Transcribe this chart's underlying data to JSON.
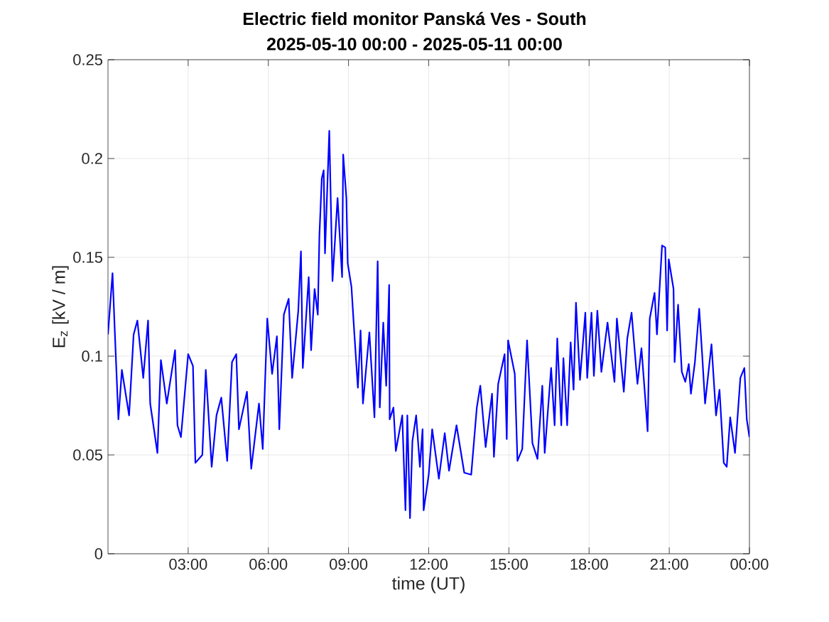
{
  "chart_data": {
    "type": "line",
    "title": "Electric field monitor Panská Ves - South",
    "subtitle": "2025-05-10 00:00 - 2025-05-11 00:00",
    "xlabel": "time (UT)",
    "ylabel": "E$_{z}$ [kV / m]",
    "xlim": [
      0,
      24
    ],
    "xticks": [
      {
        "value": 3,
        "label": "03:00"
      },
      {
        "value": 6,
        "label": "06:00"
      },
      {
        "value": 9,
        "label": "09:00"
      },
      {
        "value": 12,
        "label": "12:00"
      },
      {
        "value": 15,
        "label": "15:00"
      },
      {
        "value": 18,
        "label": "18:00"
      },
      {
        "value": 21,
        "label": "21:00"
      },
      {
        "value": 24,
        "label": "00:00"
      }
    ],
    "ylim": [
      0,
      0.25
    ],
    "yticks": [
      0,
      0.05,
      0.1,
      0.15,
      0.2,
      0.25
    ],
    "grid": true,
    "line_style": "solid",
    "marker": "none",
    "series": [
      {
        "color": "#0000ff",
        "x": [
          0,
          0.17,
          0.26,
          0.39,
          0.52,
          0.79,
          0.96,
          1.1,
          1.32,
          1.5,
          1.58,
          1.85,
          1.98,
          2.2,
          2.51,
          2.6,
          2.73,
          3.0,
          3.18,
          3.27,
          3.53,
          3.66,
          3.88,
          4.06,
          4.24,
          4.46,
          4.64,
          4.8,
          4.9,
          5.2,
          5.36,
          5.65,
          5.79,
          5.96,
          6.14,
          6.32,
          6.41,
          6.58,
          6.76,
          6.89,
          7.12,
          7.22,
          7.29,
          7.51,
          7.6,
          7.73,
          7.85,
          7.91,
          8.0,
          8.07,
          8.12,
          8.28,
          8.4,
          8.59,
          8.76,
          8.8,
          8.92,
          8.97,
          9.11,
          9.21,
          9.35,
          9.45,
          9.54,
          9.78,
          9.97,
          10.09,
          10.17,
          10.3,
          10.41,
          10.52,
          10.54,
          10.68,
          10.77,
          11.01,
          11.13,
          11.2,
          11.3,
          11.39,
          11.53,
          11.67,
          11.77,
          11.81,
          12.0,
          12.13,
          12.38,
          12.6,
          12.76,
          13.04,
          13.33,
          13.59,
          13.8,
          13.93,
          14.13,
          14.37,
          14.44,
          14.6,
          14.84,
          14.92,
          14.97,
          15.22,
          15.32,
          15.5,
          15.68,
          15.88,
          16.07,
          16.25,
          16.34,
          16.58,
          16.71,
          16.81,
          16.96,
          17.04,
          17.18,
          17.31,
          17.42,
          17.51,
          17.66,
          17.86,
          17.93,
          18.09,
          18.18,
          18.31,
          18.46,
          18.69,
          18.95,
          19.04,
          19.3,
          19.43,
          19.59,
          19.81,
          19.96,
          20.1,
          20.19,
          20.27,
          20.45,
          20.54,
          20.73,
          20.85,
          20.92,
          20.98,
          21.16,
          21.2,
          21.33,
          21.47,
          21.6,
          21.73,
          21.81,
          21.96,
          22.12,
          22.23,
          22.34,
          22.58,
          22.75,
          22.88,
          23.04,
          23.15,
          23.28,
          23.46,
          23.66,
          23.81,
          23.9,
          24.0
        ],
        "values": [
          0.111,
          0.142,
          0.111,
          0.068,
          0.093,
          0.07,
          0.111,
          0.118,
          0.089,
          0.118,
          0.076,
          0.051,
          0.098,
          0.076,
          0.103,
          0.065,
          0.059,
          0.101,
          0.095,
          0.046,
          0.05,
          0.093,
          0.044,
          0.07,
          0.079,
          0.047,
          0.097,
          0.101,
          0.063,
          0.082,
          0.043,
          0.076,
          0.053,
          0.119,
          0.091,
          0.11,
          0.063,
          0.121,
          0.129,
          0.089,
          0.123,
          0.153,
          0.094,
          0.14,
          0.103,
          0.134,
          0.121,
          0.161,
          0.19,
          0.194,
          0.152,
          0.214,
          0.138,
          0.18,
          0.14,
          0.202,
          0.18,
          0.147,
          0.135,
          0.113,
          0.084,
          0.113,
          0.076,
          0.112,
          0.069,
          0.148,
          0.074,
          0.117,
          0.085,
          0.136,
          0.068,
          0.074,
          0.052,
          0.07,
          0.022,
          0.07,
          0.018,
          0.057,
          0.07,
          0.044,
          0.063,
          0.022,
          0.04,
          0.063,
          0.038,
          0.061,
          0.042,
          0.065,
          0.041,
          0.04,
          0.074,
          0.085,
          0.054,
          0.081,
          0.049,
          0.086,
          0.101,
          0.058,
          0.108,
          0.091,
          0.047,
          0.053,
          0.108,
          0.056,
          0.048,
          0.085,
          0.051,
          0.094,
          0.065,
          0.109,
          0.065,
          0.099,
          0.065,
          0.107,
          0.083,
          0.127,
          0.088,
          0.122,
          0.089,
          0.122,
          0.09,
          0.123,
          0.092,
          0.117,
          0.087,
          0.119,
          0.082,
          0.109,
          0.122,
          0.086,
          0.104,
          0.079,
          0.062,
          0.119,
          0.132,
          0.111,
          0.156,
          0.155,
          0.113,
          0.149,
          0.134,
          0.097,
          0.126,
          0.092,
          0.087,
          0.096,
          0.081,
          0.097,
          0.124,
          0.101,
          0.076,
          0.106,
          0.07,
          0.083,
          0.046,
          0.044,
          0.069,
          0.051,
          0.089,
          0.094,
          0.068,
          0.059
        ]
      }
    ]
  }
}
